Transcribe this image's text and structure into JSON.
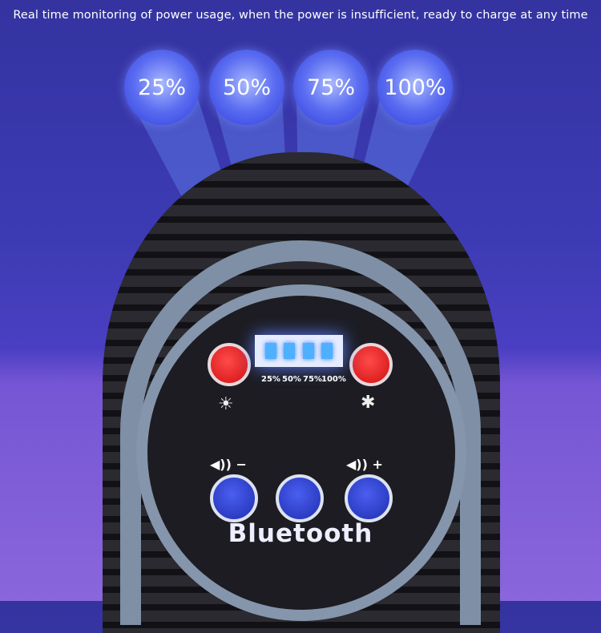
{
  "caption": "Real time monitoring of power usage, when the power is insufficient, ready to charge at any time",
  "bubbles": [
    "25%",
    "50%",
    "75%",
    "100%"
  ],
  "led_labels": [
    "25%",
    "50%",
    "75%",
    "100%"
  ],
  "panel": {
    "left_icon": "light-bulb-icon",
    "right_icon": "mosquito-icon",
    "vol_down": "◀)) −",
    "vol_up": "◀)) +",
    "brand": "Bluetooth"
  },
  "colors": {
    "bubble": "#3a48e6",
    "red_button": "#e01818",
    "blue_button": "#2a3cc8",
    "bracket": "#8595ab"
  }
}
